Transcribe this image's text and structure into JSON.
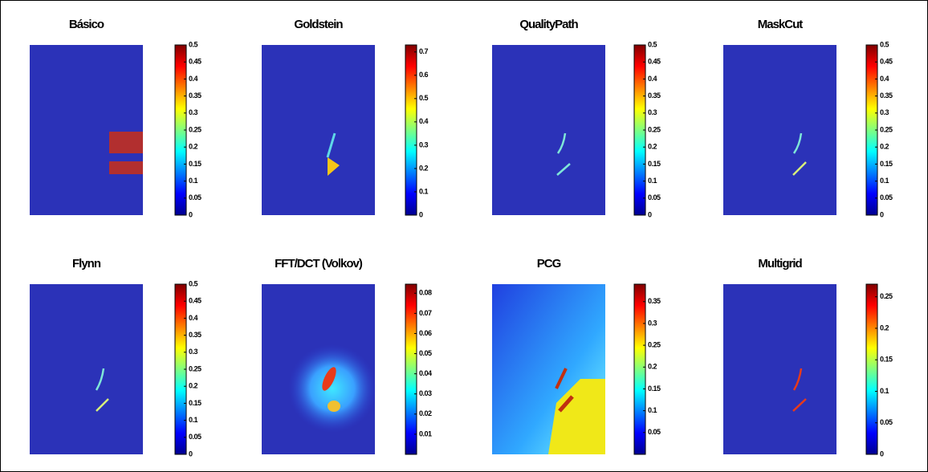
{
  "chart_data": [
    {
      "type": "heatmap",
      "title": "Básico",
      "zlim": [
        0,
        0.5
      ],
      "zticks": [
        0,
        0.05,
        0.1,
        0.15,
        0.2,
        0.25,
        0.3,
        0.35,
        0.4,
        0.45,
        0.5
      ]
    },
    {
      "type": "heatmap",
      "title": "Goldstein",
      "zlim": [
        0,
        0.73
      ],
      "zticks": [
        0,
        0.1,
        0.2,
        0.3,
        0.4,
        0.5,
        0.6,
        0.7
      ]
    },
    {
      "type": "heatmap",
      "title": "QualityPath",
      "zlim": [
        0,
        0.5
      ],
      "zticks": [
        0,
        0.05,
        0.1,
        0.15,
        0.2,
        0.25,
        0.3,
        0.35,
        0.4,
        0.45,
        0.5
      ]
    },
    {
      "type": "heatmap",
      "title": "MaskCut",
      "zlim": [
        0,
        0.5
      ],
      "zticks": [
        0,
        0.05,
        0.1,
        0.15,
        0.2,
        0.25,
        0.3,
        0.35,
        0.4,
        0.45,
        0.5
      ]
    },
    {
      "type": "heatmap",
      "title": "Flynn",
      "zlim": [
        0,
        0.5
      ],
      "zticks": [
        0,
        0.05,
        0.1,
        0.15,
        0.2,
        0.25,
        0.3,
        0.35,
        0.4,
        0.45,
        0.5
      ]
    },
    {
      "type": "heatmap",
      "title": "FFT/DCT (Volkov)",
      "zlim": [
        0,
        0.0845
      ],
      "zticks": [
        0.01,
        0.02,
        0.03,
        0.04,
        0.05,
        0.06,
        0.07,
        0.08
      ]
    },
    {
      "type": "heatmap",
      "title": "PCG",
      "zlim": [
        0,
        0.39
      ],
      "zticks": [
        0.05,
        0.1,
        0.15,
        0.2,
        0.25,
        0.3,
        0.35
      ]
    },
    {
      "type": "heatmap",
      "title": "Multigrid",
      "zlim": [
        0,
        0.27
      ],
      "zticks": [
        0,
        0.05,
        0.1,
        0.15,
        0.2,
        0.25
      ]
    }
  ]
}
